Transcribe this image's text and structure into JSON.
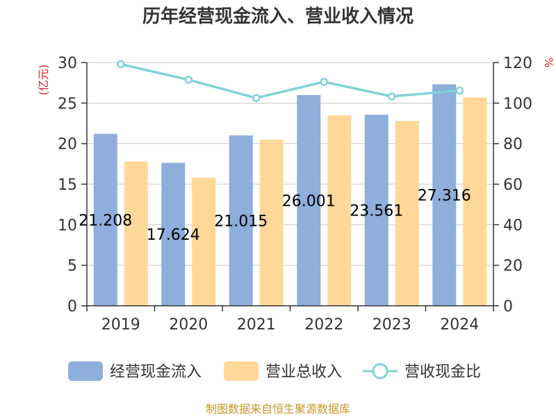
{
  "chart_data": {
    "type": "bar",
    "title": "历年经营现金流入、营业收入情况",
    "categories": [
      "2019",
      "2020",
      "2021",
      "2022",
      "2023",
      "2024"
    ],
    "series": [
      {
        "name": "经营现金流入",
        "axis": "left",
        "kind": "bar",
        "color": "#8eaedb",
        "values": [
          21.208,
          17.624,
          21.015,
          26.001,
          23.561,
          27.316
        ],
        "labels": [
          "21.208",
          "17.624",
          "21.015",
          "26.001",
          "23.561",
          "27.316"
        ]
      },
      {
        "name": "营业总收入",
        "axis": "left",
        "kind": "bar",
        "color": "#ffd898",
        "values": [
          17.8,
          15.8,
          20.5,
          23.5,
          22.8,
          25.7
        ]
      },
      {
        "name": "营收现金比",
        "axis": "right",
        "kind": "line",
        "color": "#7fd3d8",
        "values": [
          119.2,
          111.5,
          102.5,
          110.5,
          103.3,
          106.2
        ]
      }
    ],
    "left_axis": {
      "unit": "(亿元)",
      "ylim": [
        0,
        30
      ],
      "ticks": [
        "0",
        "5",
        "10",
        "15",
        "20",
        "25",
        "30"
      ]
    },
    "right_axis": {
      "unit": "%",
      "ylim": [
        0,
        120
      ],
      "ticks": [
        "0",
        "20",
        "40",
        "60",
        "80",
        "100",
        "120"
      ]
    },
    "grid": true,
    "legend_position": "bottom"
  },
  "source": "制图数据来自恒生聚源数据库"
}
